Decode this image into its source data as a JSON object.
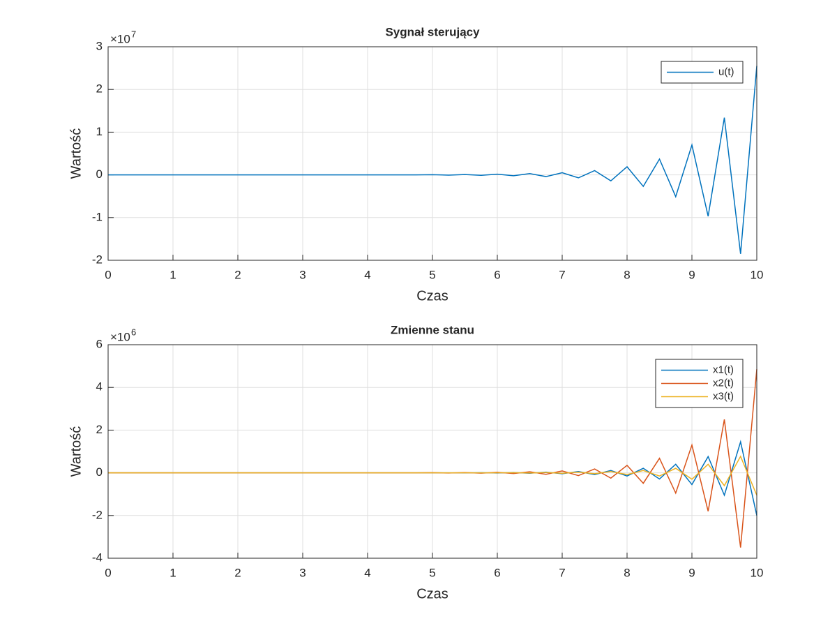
{
  "chart_data": [
    {
      "type": "line",
      "title": "Sygnał sterujący",
      "xlabel": "Czas",
      "ylabel": "Wartość",
      "y_multiplier": "×10",
      "y_exponent": 7,
      "x": [
        0,
        0.25,
        0.5,
        0.75,
        1,
        1.25,
        1.5,
        1.75,
        2,
        2.25,
        2.5,
        2.75,
        3,
        3.25,
        3.5,
        3.75,
        4,
        4.25,
        4.5,
        4.75,
        5,
        5.25,
        5.5,
        5.75,
        6,
        6.25,
        6.5,
        6.75,
        7,
        7.25,
        7.5,
        7.75,
        8,
        8.25,
        8.5,
        8.75,
        9,
        9.25,
        9.5,
        9.75,
        10
      ],
      "series": [
        {
          "name": "u(t)",
          "color": "#0072BD",
          "values": [
            0,
            0,
            0,
            0,
            0,
            0,
            0,
            0,
            0,
            0,
            0,
            0,
            0,
            0,
            0,
            0,
            0,
            0,
            0,
            0,
            0.004,
            -0.006,
            0.008,
            -0.01,
            0.015,
            -0.02,
            0.03,
            -0.04,
            0.05,
            -0.07,
            0.1,
            -0.14,
            0.19,
            -0.27,
            0.37,
            -0.51,
            0.7,
            -0.97,
            1.34,
            -1.85,
            2.55
          ]
        }
      ],
      "xlim": [
        0,
        10
      ],
      "xticks": [
        0,
        1,
        2,
        3,
        4,
        5,
        6,
        7,
        8,
        9,
        10
      ],
      "ylim": [
        -2,
        3
      ],
      "yticks": [
        -2,
        -1,
        0,
        1,
        2,
        3
      ],
      "grid": true,
      "legend": "upper right"
    },
    {
      "type": "line",
      "title": "Zmienne stanu",
      "xlabel": "Czas",
      "ylabel": "Wartość",
      "y_multiplier": "×10",
      "y_exponent": 6,
      "x": [
        0,
        0.25,
        0.5,
        0.75,
        1,
        1.25,
        1.5,
        1.75,
        2,
        2.25,
        2.5,
        2.75,
        3,
        3.25,
        3.5,
        3.75,
        4,
        4.25,
        4.5,
        4.75,
        5,
        5.25,
        5.5,
        5.75,
        6,
        6.25,
        6.5,
        6.75,
        7,
        7.25,
        7.5,
        7.75,
        8,
        8.25,
        8.5,
        8.75,
        9,
        9.25,
        9.5,
        9.75,
        10
      ],
      "series": [
        {
          "name": "x1(t)",
          "color": "#0072BD",
          "values": [
            0,
            0,
            0,
            0,
            0,
            0,
            0,
            0,
            0,
            0,
            0,
            0,
            0,
            0,
            0,
            0,
            0,
            0,
            0,
            0,
            0,
            0,
            -0.005,
            0.007,
            -0.01,
            0.015,
            -0.02,
            0.03,
            -0.04,
            0.06,
            -0.08,
            0.11,
            -0.15,
            0.21,
            -0.29,
            0.4,
            -0.55,
            0.76,
            -1.05,
            1.45,
            -2.0
          ]
        },
        {
          "name": "x2(t)",
          "color": "#D95319",
          "values": [
            0,
            0,
            0,
            0,
            0,
            0,
            0,
            0,
            0,
            0,
            0,
            0,
            0,
            0,
            0,
            0,
            0,
            0,
            0,
            0,
            0.007,
            -0.01,
            0.013,
            -0.018,
            0.025,
            -0.035,
            0.05,
            -0.07,
            0.09,
            -0.13,
            0.18,
            -0.25,
            0.35,
            -0.49,
            0.68,
            -0.95,
            1.3,
            -1.8,
            2.5,
            -3.5,
            4.85
          ]
        },
        {
          "name": "x3(t)",
          "color": "#EDB120",
          "values": [
            0,
            0,
            0,
            0,
            0,
            0,
            0,
            0,
            0,
            0,
            0,
            0,
            0,
            0,
            0,
            0,
            0,
            0,
            0,
            0,
            0,
            0,
            0,
            0,
            0,
            0.007,
            -0.01,
            0.015,
            -0.02,
            0.03,
            -0.04,
            0.06,
            -0.08,
            0.11,
            -0.15,
            0.21,
            -0.3,
            0.4,
            -0.6,
            0.77,
            -1.05
          ]
        }
      ],
      "xlim": [
        0,
        10
      ],
      "xticks": [
        0,
        1,
        2,
        3,
        4,
        5,
        6,
        7,
        8,
        9,
        10
      ],
      "ylim": [
        -4,
        6
      ],
      "yticks": [
        -4,
        -2,
        0,
        2,
        4,
        6
      ],
      "grid": true,
      "legend": "upper right"
    }
  ]
}
